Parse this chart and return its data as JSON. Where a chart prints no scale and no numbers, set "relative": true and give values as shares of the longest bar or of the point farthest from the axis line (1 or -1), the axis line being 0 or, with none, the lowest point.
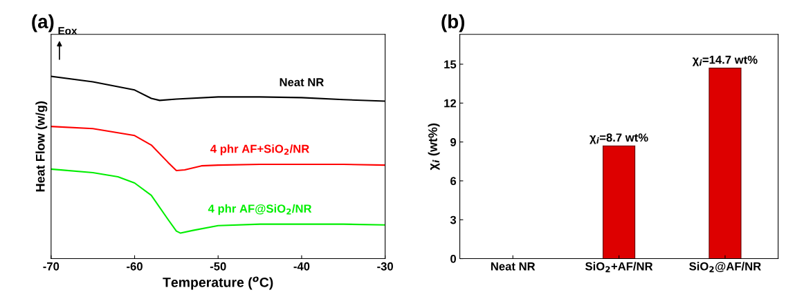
{
  "chart_data": [
    {
      "type": "line",
      "relative": true,
      "xlabel": "Temperature ($^{o}$C)",
      "ylabel": "Heat Flow (w/g)",
      "xlim": [
        -70,
        -30
      ],
      "xticks": [
        -70,
        -60,
        -50,
        -40,
        -30
      ],
      "tick_labels": "x",
      "grid": false,
      "annotations": [
        "(a)",
        "Eox"
      ],
      "series": [
        {
          "name": "Neat NR",
          "color": "#000000",
          "x": [
            -70,
            -65,
            -60,
            -58,
            -57,
            -55,
            -50,
            -45,
            -40,
            -35,
            -30
          ],
          "values": [
            1.0,
            0.97,
            0.925,
            0.879,
            0.868,
            0.875,
            0.887,
            0.887,
            0.883,
            0.872,
            0.864
          ]
        },
        {
          "name": "4 phr AF+SiO$_{2}$/NR",
          "color": "#ff0000",
          "x": [
            -70,
            -65,
            -60,
            -58,
            -56,
            -55,
            -54,
            -52,
            -50,
            -45,
            -40,
            -35,
            -30
          ],
          "values": [
            0.725,
            0.713,
            0.675,
            0.623,
            0.528,
            0.483,
            0.487,
            0.509,
            0.513,
            0.517,
            0.517,
            0.517,
            0.513
          ]
        },
        {
          "name": "4 phr AF@SiO$_{2}$/NR",
          "color": "#00ee00",
          "x": [
            -70,
            -65,
            -62,
            -60,
            -58,
            -56,
            -55,
            -54.5,
            -53,
            -50,
            -45,
            -40,
            -35,
            -30
          ],
          "values": [
            0.491,
            0.472,
            0.449,
            0.415,
            0.347,
            0.215,
            0.151,
            0.14,
            0.155,
            0.181,
            0.189,
            0.189,
            0.189,
            0.185
          ]
        }
      ]
    },
    {
      "type": "bar",
      "ylabel": "χ$_{i}$ (wt%)",
      "categories": [
        "Neat NR",
        "SiO$_{2}$+AF/NR",
        "SiO$_{2}$@AF/NR"
      ],
      "values": [
        null,
        8.7,
        14.7
      ],
      "colors": [
        "#dd0000",
        "#dd0000",
        "#dd0000"
      ],
      "value_labels": [
        null,
        "χ$_{i}$=8.7 wt%",
        "χ$_{i}$=14.7 wt%"
      ],
      "ylim": [
        0,
        17.3
      ],
      "yticks": [
        0,
        3,
        6,
        9,
        12,
        15
      ],
      "grid": false,
      "annotations": [
        "(b)"
      ]
    }
  ]
}
